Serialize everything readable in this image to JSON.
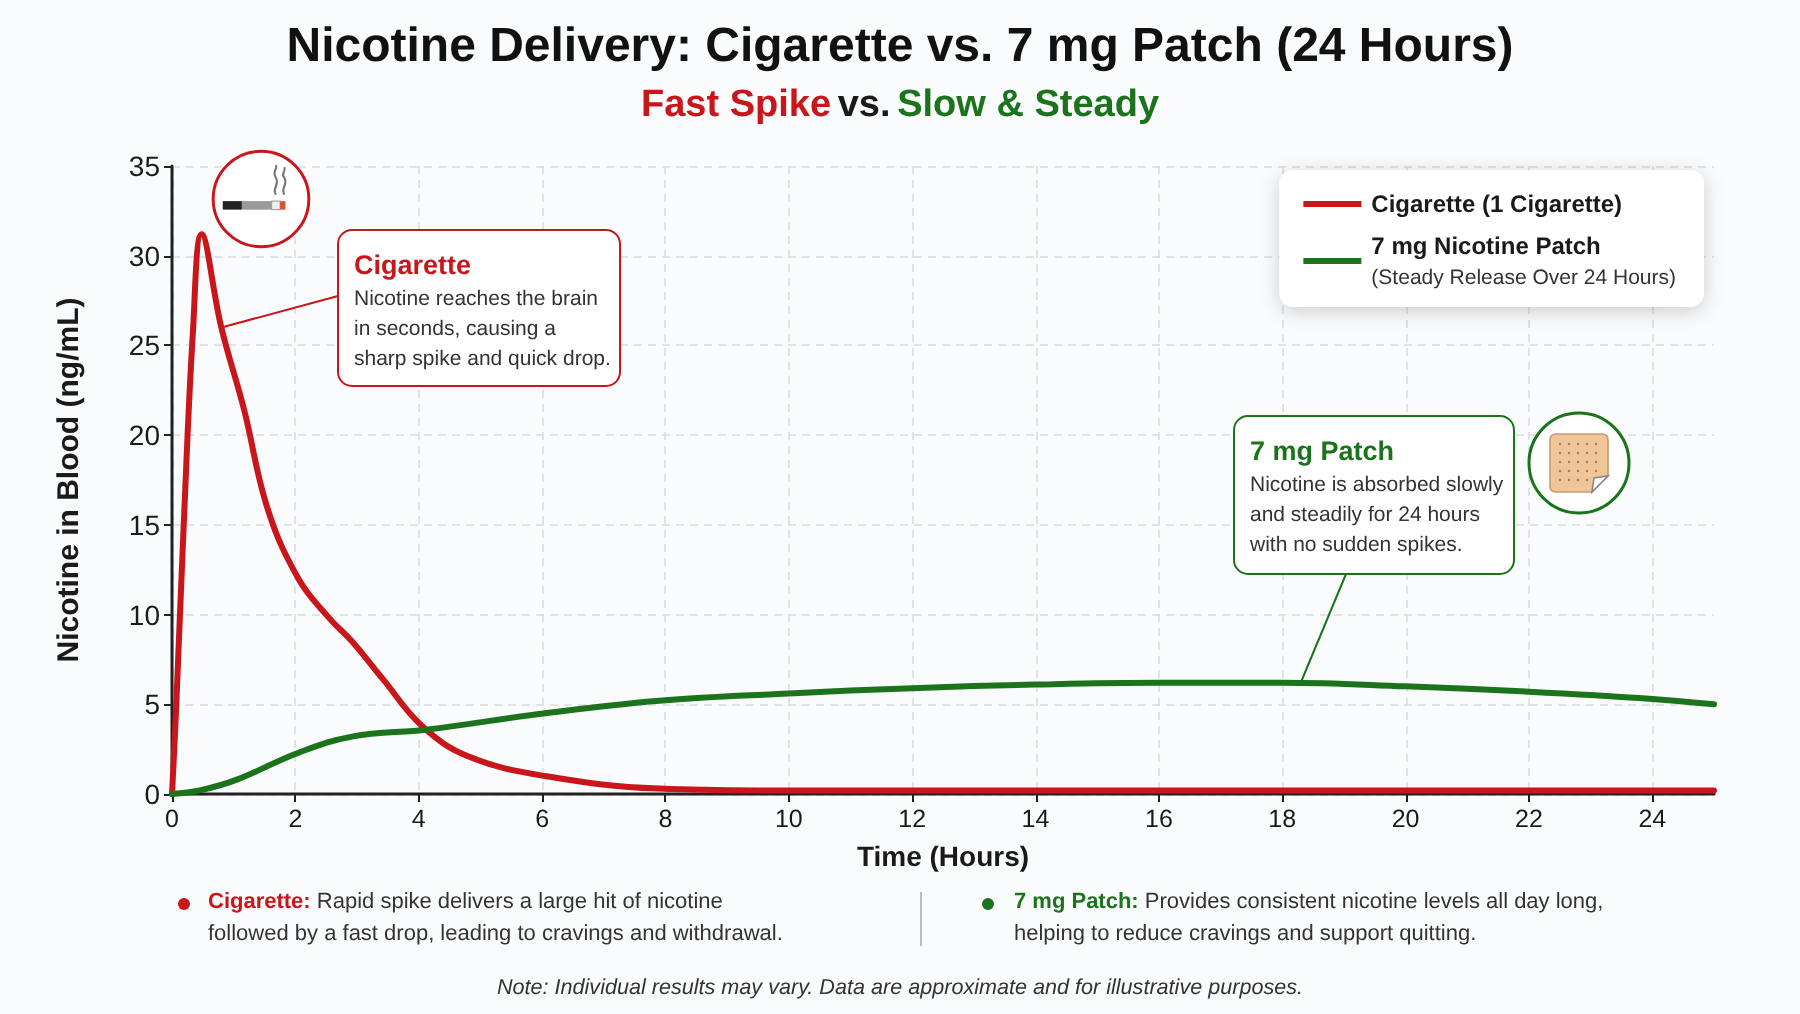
{
  "chart_data": {
    "type": "line",
    "title": "Nicotine Delivery: Cigarette vs. 7 mg Patch (24 Hours)",
    "subtitle": "Fast Spike vs. Slow & Steady",
    "xlabel": "Time (Hours)",
    "ylabel": "Nicotine in Blood (ng/mL)",
    "xlim": [
      0,
      25
    ],
    "xticks": [
      0,
      2,
      4,
      6,
      8,
      10,
      12,
      14,
      16,
      18,
      20,
      22,
      24
    ],
    "ylim": [
      0,
      35
    ],
    "yticks": [
      0,
      5,
      10,
      15,
      20,
      25,
      30,
      35
    ],
    "grid": true,
    "legend": "top right",
    "line_style": "solid",
    "series": [
      {
        "name": "Cigarette (1 Cigarette)",
        "color": "#c8161b",
        "x": [
          0,
          0.06,
          0.19,
          0.34,
          0.48,
          0.8,
          1.17,
          1.55,
          2.05,
          2.55,
          2.92,
          3.42,
          4.05,
          4.8,
          6.05,
          7.9,
          9.5,
          12,
          16,
          20,
          25
        ],
        "values": [
          0,
          4.2,
          15,
          25.8,
          31.2,
          26,
          21.4,
          15.9,
          12,
          9.8,
          8.5,
          6.4,
          3.8,
          2.1,
          1,
          0.3,
          0.2,
          0.2,
          0.2,
          0.2,
          0.2
        ]
      },
      {
        "name": "7 mg Nicotine Patch\n(Steady Release Over 24 Hours)",
        "color": "#1b741b",
        "x": [
          0,
          0.45,
          1.05,
          2.05,
          2.92,
          4.15,
          6.05,
          7.9,
          10,
          12,
          14,
          16,
          18,
          20,
          22,
          24,
          25
        ],
        "values": [
          0,
          0.2,
          0.8,
          2.3,
          3.2,
          3.6,
          4.5,
          5.2,
          5.6,
          5.9,
          6.1,
          6.2,
          6.2,
          6,
          5.7,
          5.3,
          5
        ]
      }
    ],
    "annotations": [
      {
        "text": "Cigarette\nNicotine reaches the brain\nin seconds, causing a\nsharp spike and quick drop.",
        "x": 0.8,
        "y": 26
      },
      {
        "text": "7 mg Patch\nNicotine is absorbed slowly\nand steadily for 24 hours\nwith no sudden spikes.",
        "x": 18.3,
        "y": 6.2
      },
      "Cigarette: Rapid spike delivers a large hit of nicotine followed by a fast drop, leading to cravings and withdrawal.",
      "7 mg Patch: Provides consistent nicotine levels all day long, helping to reduce cravings and support quitting.",
      "Note: Individual results may vary. Data are approximate and for illustrative purposes."
    ]
  }
}
